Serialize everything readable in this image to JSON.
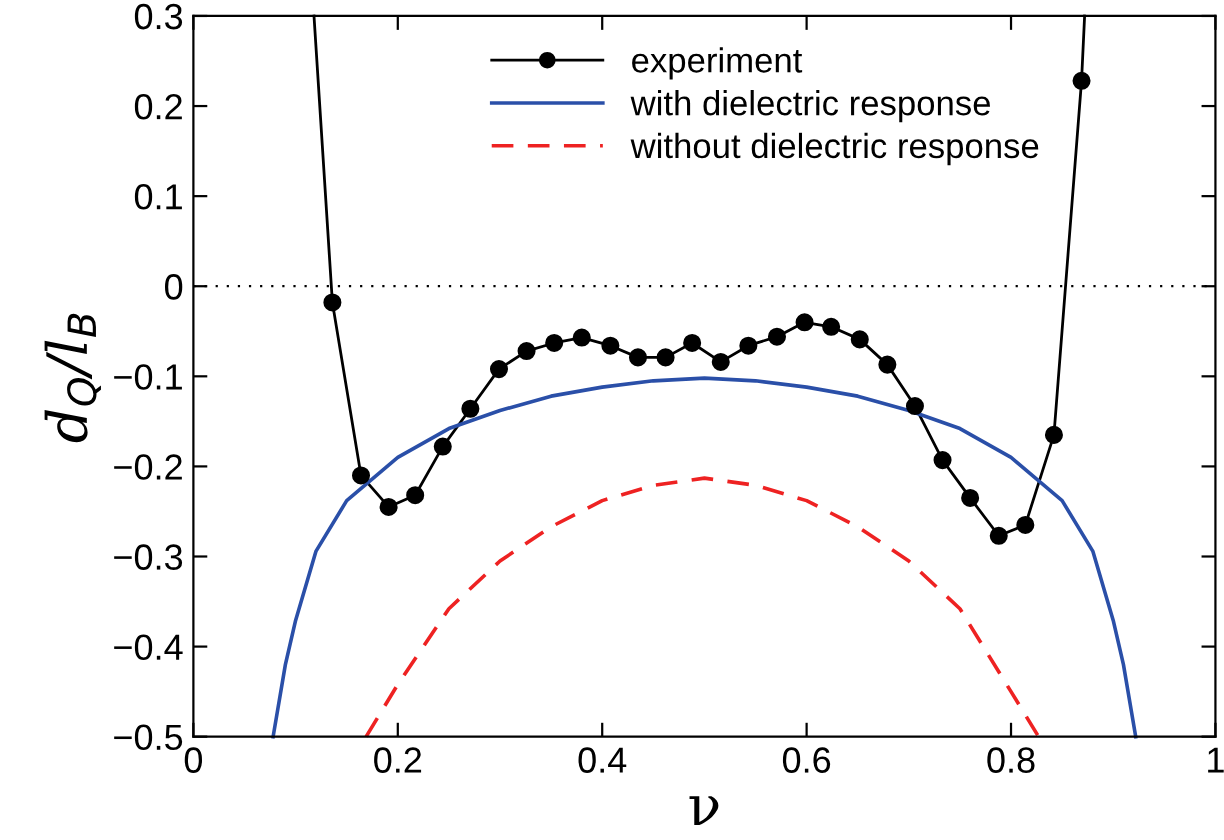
{
  "chart_data": {
    "type": "line",
    "xlabel": "ν",
    "ylabel": "d$_{Q}$/l$_{B}$",
    "xlim": [
      0,
      1
    ],
    "ylim": [
      -0.5,
      0.3
    ],
    "xticks": [
      0,
      0.2,
      0.4,
      0.6,
      0.8,
      1
    ],
    "yticks": [
      0.3,
      0.2,
      0.1,
      0,
      {
        "value": -0.1,
        "label": "−0.1"
      },
      {
        "value": -0.2,
        "label": "−0.2"
      },
      {
        "value": -0.3,
        "label": "−0.3"
      },
      {
        "value": -0.4,
        "label": "−0.4"
      },
      {
        "value": -0.5,
        "label": "−0.5"
      }
    ],
    "grid": false,
    "legend": "top",
    "ref_lines": [
      {
        "axis": "y",
        "value": 0,
        "color": "#000000",
        "line_style": "dotted"
      }
    ],
    "series": [
      {
        "name": "experiment",
        "color": "#000000",
        "marker": "circle",
        "line_style": "solid",
        "x": [
          0.118,
          0.136,
          0.164,
          0.191,
          0.217,
          0.244,
          0.271,
          0.299,
          0.326,
          0.353,
          0.38,
          0.408,
          0.435,
          0.462,
          0.488,
          0.516,
          0.543,
          0.571,
          0.598,
          0.624,
          0.652,
          0.679,
          0.706,
          0.733,
          0.76,
          0.788,
          0.814,
          0.842,
          0.869,
          0.872
        ],
        "values": [
          0.3,
          -0.018,
          -0.21,
          -0.245,
          -0.232,
          -0.178,
          -0.136,
          -0.092,
          -0.072,
          -0.063,
          -0.057,
          -0.066,
          -0.079,
          -0.079,
          -0.063,
          -0.084,
          -0.066,
          -0.056,
          -0.04,
          -0.045,
          -0.059,
          -0.087,
          -0.133,
          -0.193,
          -0.235,
          -0.277,
          -0.265,
          -0.165,
          0.228,
          0.3
        ]
      },
      {
        "name": "with dielectric response",
        "color": "#2a4fa8",
        "marker": "none",
        "line_style": "solid",
        "x": [
          0.078,
          0.09,
          0.1,
          0.12,
          0.15,
          0.2,
          0.25,
          0.3,
          0.35,
          0.4,
          0.45,
          0.5,
          0.55,
          0.6,
          0.65,
          0.7,
          0.75,
          0.8,
          0.85,
          0.88,
          0.9,
          0.91,
          0.922
        ],
        "values": [
          -0.5,
          -0.42,
          -0.371,
          -0.294,
          -0.238,
          -0.19,
          -0.158,
          -0.138,
          -0.122,
          -0.112,
          -0.105,
          -0.102,
          -0.105,
          -0.112,
          -0.122,
          -0.138,
          -0.158,
          -0.19,
          -0.238,
          -0.294,
          -0.371,
          -0.42,
          -0.5
        ]
      },
      {
        "name": "without dielectric response",
        "color": "#ee2222",
        "marker": "none",
        "line_style": "dashed",
        "x": [
          0.169,
          0.2,
          0.25,
          0.3,
          0.35,
          0.4,
          0.45,
          0.5,
          0.55,
          0.6,
          0.65,
          0.7,
          0.75,
          0.8,
          0.827
        ],
        "values": [
          -0.5,
          -0.442,
          -0.358,
          -0.305,
          -0.267,
          -0.238,
          -0.221,
          -0.213,
          -0.221,
          -0.238,
          -0.267,
          -0.305,
          -0.358,
          -0.45,
          -0.5
        ]
      }
    ]
  }
}
